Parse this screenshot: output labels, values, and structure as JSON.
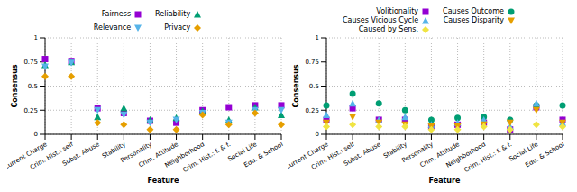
{
  "chart_data": [
    {
      "type": "scatter",
      "x_label": "Feature",
      "y_label": "Consensus",
      "categories": [
        "Current Charge",
        "Crim. Hist.: self",
        "Subst. Abuse",
        "Stability",
        "Personality",
        "Crim. Attitude",
        "Neighborhood",
        "Crim. Hist.: f. & f.",
        "Social Life",
        "Edu. & School"
      ],
      "ylim": [
        0,
        1
      ],
      "yticks": [
        0,
        0.25,
        0.5,
        0.75,
        1
      ],
      "grid": true,
      "series": [
        {
          "name": "Fairness",
          "color": "#9400d3",
          "marker": "square",
          "values": [
            0.78,
            0.76,
            0.27,
            0.22,
            0.14,
            0.12,
            0.25,
            0.28,
            0.3,
            0.3
          ]
        },
        {
          "name": "Reliability",
          "color": "#009e73",
          "marker": "triangle",
          "values": [
            0.72,
            0.75,
            0.18,
            0.27,
            0.15,
            0.17,
            0.24,
            0.15,
            0.28,
            0.2
          ]
        },
        {
          "name": "Relevance",
          "color": "#56b4e9",
          "marker": "triangle-down",
          "values": [
            0.7,
            0.74,
            0.25,
            0.2,
            0.12,
            0.15,
            0.22,
            0.12,
            0.25,
            0.25
          ]
        },
        {
          "name": "Privacy",
          "color": "#e69f00",
          "marker": "diamond",
          "values": [
            0.6,
            0.6,
            0.12,
            0.1,
            0.05,
            0.05,
            0.2,
            0.1,
            0.22,
            0.1
          ]
        }
      ]
    },
    {
      "type": "scatter",
      "x_label": "Feature",
      "y_label": "Consensus",
      "categories": [
        "Current Charge",
        "Crim. Hist.: self",
        "Subst. Abuse",
        "Stability",
        "Personality",
        "Crim. Attitude",
        "Neighborhood",
        "Crim. Hist.: f. & f.",
        "Social Life",
        "Edu. & School"
      ],
      "ylim": [
        0,
        1
      ],
      "yticks": [
        0,
        0.25,
        0.5,
        0.75,
        1
      ],
      "grid": true,
      "series": [
        {
          "name": "Volitionality",
          "color": "#9400d3",
          "marker": "square",
          "values": [
            0.15,
            0.27,
            0.15,
            0.15,
            0.08,
            0.1,
            0.12,
            0.05,
            0.28,
            0.15
          ]
        },
        {
          "name": "Causes Outcome",
          "color": "#009e73",
          "marker": "circle",
          "values": [
            0.3,
            0.42,
            0.32,
            0.25,
            0.15,
            0.17,
            0.18,
            0.15,
            0.3,
            0.3
          ]
        },
        {
          "name": "Causes Vicious Cycle",
          "color": "#56b4e9",
          "marker": "triangle",
          "values": [
            0.2,
            0.32,
            0.15,
            0.18,
            0.1,
            0.12,
            0.15,
            0.08,
            0.32,
            0.12
          ]
        },
        {
          "name": "Causes Disparity",
          "color": "#e69f00",
          "marker": "triangle-down",
          "values": [
            0.12,
            0.18,
            0.12,
            0.1,
            0.08,
            0.08,
            0.1,
            0.12,
            0.25,
            0.12
          ]
        },
        {
          "name": "Caused by Sens.",
          "color": "#f0e442",
          "marker": "diamond",
          "values": [
            0.08,
            0.1,
            0.08,
            0.08,
            0.05,
            0.05,
            0.08,
            0.05,
            0.1,
            0.08
          ]
        }
      ]
    }
  ]
}
